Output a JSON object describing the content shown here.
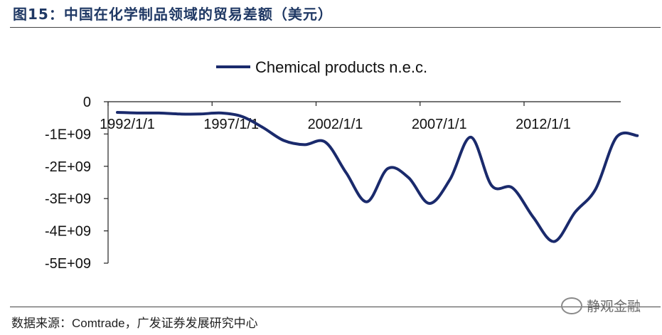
{
  "figure": {
    "title": "图15：中国在化学制品领域的贸易差额（美元）",
    "source_label": "数据来源：",
    "source_en": "Comtrade",
    "source_rest": "，广发证券发展研究中心",
    "watermark": "静观金融"
  },
  "chart_data": {
    "type": "line",
    "legend_position": "top-center",
    "grid": false,
    "x": [
      "1992/1/1",
      "1993/1/1",
      "1994/1/1",
      "1995/1/1",
      "1996/1/1",
      "1997/1/1",
      "1998/1/1",
      "1999/1/1",
      "2000/1/1",
      "2001/1/1",
      "2002/1/1",
      "2003/1/1",
      "2004/1/1",
      "2005/1/1",
      "2006/1/1",
      "2007/1/1",
      "2008/1/1",
      "2009/1/1",
      "2010/1/1",
      "2011/1/1",
      "2012/1/1",
      "2013/1/1",
      "2014/1/1",
      "2015/1/1",
      "2016/1/1",
      "2017/1/1"
    ],
    "x_tick_labels": [
      "1992/1/1",
      "1997/1/1",
      "2002/1/1",
      "2007/1/1",
      "2012/1/1"
    ],
    "y_ticks": [
      0,
      -1000000000,
      -2000000000,
      -3000000000,
      -4000000000,
      -5000000000
    ],
    "y_tick_labels": [
      "0",
      "-1E+09",
      "-2E+09",
      "-3E+09",
      "-4E+09",
      "-5E+09"
    ],
    "ylim": [
      -5000000000,
      0
    ],
    "series": [
      {
        "name": "Chemical products n.e.c.",
        "color": "#1a2a6c",
        "values": [
          -330000000,
          -350000000,
          -350000000,
          -380000000,
          -380000000,
          -350000000,
          -460000000,
          -800000000,
          -1200000000,
          -1330000000,
          -1250000000,
          -2200000000,
          -3100000000,
          -2070000000,
          -2350000000,
          -3150000000,
          -2400000000,
          -1100000000,
          -2600000000,
          -2670000000,
          -3580000000,
          -4330000000,
          -3430000000,
          -2700000000,
          -1100000000,
          -1050000000
        ]
      }
    ]
  }
}
